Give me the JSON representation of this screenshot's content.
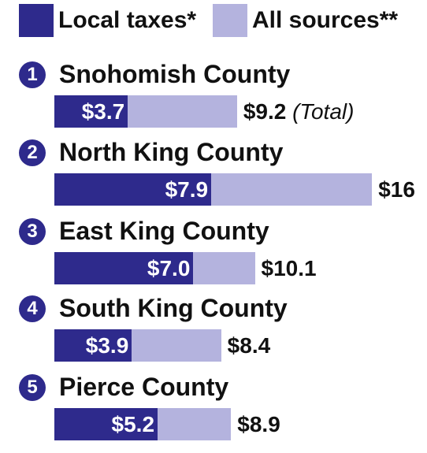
{
  "legend": [
    {
      "label": "Local taxes*",
      "color": "#2e2a8c"
    },
    {
      "label": "All sources**",
      "color": "#b4b3de"
    }
  ],
  "chart_data": {
    "type": "bar",
    "orientation": "horizontal",
    "stacking": "overlay",
    "categories": [
      "Snohomish County",
      "North King County",
      "East King County",
      "South King County",
      "Pierce County"
    ],
    "ranks": [
      "1",
      "2",
      "3",
      "4",
      "5"
    ],
    "series": [
      {
        "name": "Local taxes*",
        "values": [
          3.7,
          7.9,
          7.0,
          3.9,
          5.2
        ],
        "labels": [
          "$3.7",
          "$7.9",
          "$7.0",
          "$3.9",
          "$5.2"
        ],
        "color": "#2e2a8c"
      },
      {
        "name": "All sources**",
        "values": [
          9.2,
          16,
          10.1,
          8.4,
          8.9
        ],
        "labels": [
          "$9.2",
          "$16",
          "$10.1",
          "$8.4",
          "$8.9"
        ],
        "color": "#b4b3de"
      }
    ],
    "first_total_note": "(Total)",
    "xlim": [
      0,
      16
    ]
  }
}
